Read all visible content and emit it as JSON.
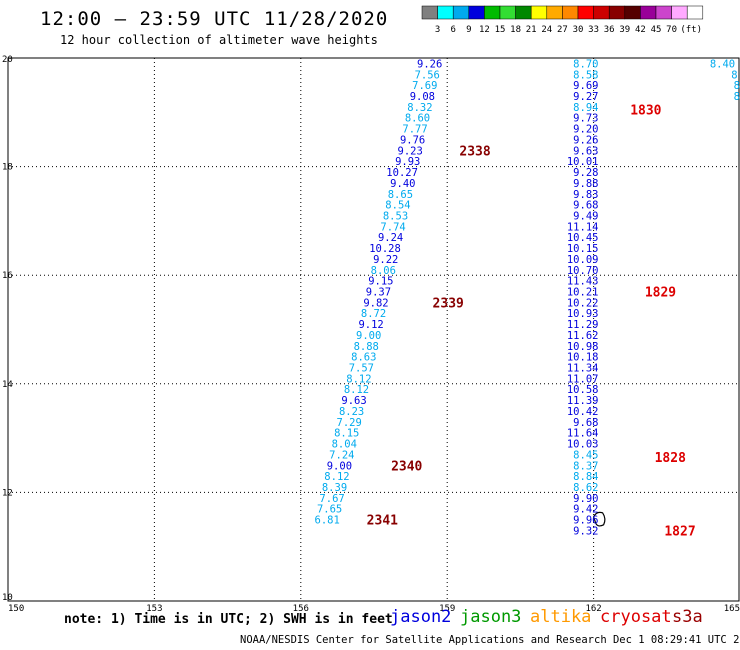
{
  "header": {
    "title": "12:00 – 23:59 UTC 11/28/2020",
    "subtitle": "12 hour collection of altimeter wave heights"
  },
  "colorbar": {
    "colors": [
      "#808080",
      "#00ffff",
      "#00aaee",
      "#0000dd",
      "#00bb00",
      "#33dd33",
      "#008800",
      "#ffff00",
      "#ffaa00",
      "#ff8800",
      "#ff0000",
      "#cc0000",
      "#880000",
      "#550000",
      "#990099",
      "#cc44cc",
      "#ffaaff",
      "#ffffff"
    ],
    "labels": [
      "3",
      "6",
      "9",
      "12",
      "15",
      "18",
      "21",
      "24",
      "27",
      "30",
      "33",
      "36",
      "39",
      "42",
      "45",
      "70",
      "(ft)"
    ]
  },
  "footer": {
    "note": "note: 1) Time is in UTC; 2) SWH is in feet",
    "satellites": [
      {
        "name": "jason2",
        "color": "#0000dd"
      },
      {
        "name": "jason3",
        "color": "#009900"
      },
      {
        "name": "altika",
        "color": "#ff9900"
      },
      {
        "name": "cryosat",
        "color": "#dd0000"
      },
      {
        "name": "s3a",
        "color": "#990000"
      }
    ],
    "credit": "NOAA/NESDIS Center for Satellite Applications and Research    Dec  1 08:29:41 UTC 2020"
  },
  "chart_data": {
    "type": "scatter",
    "title": "12:00 – 23:59 UTC 11/28/2020",
    "xlim": [
      150,
      165
    ],
    "ylim": [
      10,
      20
    ],
    "xticks": [
      "150",
      "153",
      "156",
      "159",
      "162",
      "165"
    ],
    "yticks": [
      "10",
      "12",
      "14",
      "16",
      "18",
      "20"
    ],
    "grid": true,
    "series": [
      {
        "name": "track-west",
        "points": [
          {
            "lon": 158.9,
            "lat": 19.9,
            "swh": "9.26",
            "color": "#0000dd"
          },
          {
            "lon": 158.85,
            "lat": 19.7,
            "swh": "7.56",
            "color": "#00aaee"
          },
          {
            "lon": 158.8,
            "lat": 19.5,
            "swh": "7.69",
            "color": "#00aaee"
          },
          {
            "lon": 158.75,
            "lat": 19.3,
            "swh": "9.08",
            "color": "#0000dd"
          },
          {
            "lon": 158.7,
            "lat": 19.1,
            "swh": "8.32",
            "color": "#00aaee"
          },
          {
            "lon": 158.65,
            "lat": 18.9,
            "swh": "8.60",
            "color": "#00aaee"
          },
          {
            "lon": 158.6,
            "lat": 18.7,
            "swh": "7.77",
            "color": "#00aaee"
          },
          {
            "lon": 158.55,
            "lat": 18.5,
            "swh": "9.76",
            "color": "#0000dd"
          },
          {
            "lon": 158.5,
            "lat": 18.3,
            "swh": "9.23",
            "color": "#0000dd"
          },
          {
            "lon": 158.45,
            "lat": 18.1,
            "swh": "9.93",
            "color": "#0000dd"
          },
          {
            "lon": 158.4,
            "lat": 17.9,
            "swh": "10.27",
            "color": "#0000dd"
          },
          {
            "lon": 158.35,
            "lat": 17.7,
            "swh": "9.40",
            "color": "#0000dd"
          },
          {
            "lon": 158.3,
            "lat": 17.5,
            "swh": "8.65",
            "color": "#00aaee"
          },
          {
            "lon": 158.25,
            "lat": 17.3,
            "swh": "8.54",
            "color": "#00aaee"
          },
          {
            "lon": 158.2,
            "lat": 17.1,
            "swh": "8.53",
            "color": "#00aaee"
          },
          {
            "lon": 158.15,
            "lat": 16.9,
            "swh": "7.74",
            "color": "#00aaee"
          },
          {
            "lon": 158.1,
            "lat": 16.7,
            "swh": "9.24",
            "color": "#0000dd"
          },
          {
            "lon": 158.05,
            "lat": 16.5,
            "swh": "10.28",
            "color": "#0000dd"
          },
          {
            "lon": 158.0,
            "lat": 16.3,
            "swh": "9.22",
            "color": "#0000dd"
          },
          {
            "lon": 157.95,
            "lat": 16.1,
            "swh": "8.06",
            "color": "#00aaee"
          },
          {
            "lon": 157.9,
            "lat": 15.9,
            "swh": "9.15",
            "color": "#0000dd"
          },
          {
            "lon": 157.85,
            "lat": 15.7,
            "swh": "9.37",
            "color": "#0000dd"
          },
          {
            "lon": 157.8,
            "lat": 15.5,
            "swh": "9.82",
            "color": "#0000dd"
          },
          {
            "lon": 157.75,
            "lat": 15.3,
            "swh": "8.72",
            "color": "#00aaee"
          },
          {
            "lon": 157.7,
            "lat": 15.1,
            "swh": "9.12",
            "color": "#0000dd"
          },
          {
            "lon": 157.65,
            "lat": 14.9,
            "swh": "9.00",
            "color": "#00aaee"
          },
          {
            "lon": 157.6,
            "lat": 14.7,
            "swh": "8.88",
            "color": "#00aaee"
          },
          {
            "lon": 157.55,
            "lat": 14.5,
            "swh": "8.63",
            "color": "#00aaee"
          },
          {
            "lon": 157.5,
            "lat": 14.3,
            "swh": "7.57",
            "color": "#00aaee"
          },
          {
            "lon": 157.45,
            "lat": 14.1,
            "swh": "8.12",
            "color": "#00aaee"
          },
          {
            "lon": 157.4,
            "lat": 13.9,
            "swh": "8.12",
            "color": "#00aaee"
          },
          {
            "lon": 157.35,
            "lat": 13.7,
            "swh": "9.63",
            "color": "#0000dd"
          },
          {
            "lon": 157.3,
            "lat": 13.5,
            "swh": "8.23",
            "color": "#00aaee"
          },
          {
            "lon": 157.25,
            "lat": 13.3,
            "swh": "7.29",
            "color": "#00aaee"
          },
          {
            "lon": 157.2,
            "lat": 13.1,
            "swh": "8.15",
            "color": "#00aaee"
          },
          {
            "lon": 157.15,
            "lat": 12.9,
            "swh": "8.04",
            "color": "#00aaee"
          },
          {
            "lon": 157.1,
            "lat": 12.7,
            "swh": "7.24",
            "color": "#00aaee"
          },
          {
            "lon": 157.05,
            "lat": 12.5,
            "swh": "9.00",
            "color": "#0000dd"
          },
          {
            "lon": 157.0,
            "lat": 12.3,
            "swh": "8.12",
            "color": "#00aaee"
          },
          {
            "lon": 156.95,
            "lat": 12.1,
            "swh": "8.39",
            "color": "#00aaee"
          },
          {
            "lon": 156.9,
            "lat": 11.9,
            "swh": "7.67",
            "color": "#00aaee"
          },
          {
            "lon": 156.85,
            "lat": 11.7,
            "swh": "7.65",
            "color": "#00aaee"
          },
          {
            "lon": 156.8,
            "lat": 11.5,
            "swh": "6.81",
            "color": "#00aaee"
          }
        ]
      },
      {
        "name": "track-east",
        "points": [
          {
            "lon": 162.1,
            "lat": 19.9,
            "swh": "8.70",
            "color": "#00aaee"
          },
          {
            "lon": 162.1,
            "lat": 19.7,
            "swh": "8.58",
            "color": "#00aaee"
          },
          {
            "lon": 162.1,
            "lat": 19.5,
            "swh": "9.69",
            "color": "#0000dd"
          },
          {
            "lon": 162.1,
            "lat": 19.3,
            "swh": "9.27",
            "color": "#0000dd"
          },
          {
            "lon": 162.1,
            "lat": 19.1,
            "swh": "8.94",
            "color": "#00aaee"
          },
          {
            "lon": 162.1,
            "lat": 18.9,
            "swh": "9.73",
            "color": "#0000dd"
          },
          {
            "lon": 162.1,
            "lat": 18.7,
            "swh": "9.20",
            "color": "#0000dd"
          },
          {
            "lon": 162.1,
            "lat": 18.5,
            "swh": "9.26",
            "color": "#0000dd"
          },
          {
            "lon": 162.1,
            "lat": 18.3,
            "swh": "9.63",
            "color": "#0000dd"
          },
          {
            "lon": 162.1,
            "lat": 18.1,
            "swh": "10.01",
            "color": "#0000dd"
          },
          {
            "lon": 162.1,
            "lat": 17.9,
            "swh": "9.28",
            "color": "#0000dd"
          },
          {
            "lon": 162.1,
            "lat": 17.7,
            "swh": "9.88",
            "color": "#0000dd"
          },
          {
            "lon": 162.1,
            "lat": 17.5,
            "swh": "9.83",
            "color": "#0000dd"
          },
          {
            "lon": 162.1,
            "lat": 17.3,
            "swh": "9.68",
            "color": "#0000dd"
          },
          {
            "lon": 162.1,
            "lat": 17.1,
            "swh": "9.49",
            "color": "#0000dd"
          },
          {
            "lon": 162.1,
            "lat": 16.9,
            "swh": "11.14",
            "color": "#0000dd"
          },
          {
            "lon": 162.1,
            "lat": 16.7,
            "swh": "10.45",
            "color": "#0000dd"
          },
          {
            "lon": 162.1,
            "lat": 16.5,
            "swh": "10.15",
            "color": "#0000dd"
          },
          {
            "lon": 162.1,
            "lat": 16.3,
            "swh": "10.09",
            "color": "#0000dd"
          },
          {
            "lon": 162.1,
            "lat": 16.1,
            "swh": "10.70",
            "color": "#0000dd"
          },
          {
            "lon": 162.1,
            "lat": 15.9,
            "swh": "11.43",
            "color": "#0000dd"
          },
          {
            "lon": 162.1,
            "lat": 15.7,
            "swh": "10.21",
            "color": "#0000dd"
          },
          {
            "lon": 162.1,
            "lat": 15.5,
            "swh": "10.22",
            "color": "#0000dd"
          },
          {
            "lon": 162.1,
            "lat": 15.3,
            "swh": "10.93",
            "color": "#0000dd"
          },
          {
            "lon": 162.1,
            "lat": 15.1,
            "swh": "11.29",
            "color": "#0000dd"
          },
          {
            "lon": 162.1,
            "lat": 14.9,
            "swh": "11.62",
            "color": "#0000dd"
          },
          {
            "lon": 162.1,
            "lat": 14.7,
            "swh": "10.98",
            "color": "#0000dd"
          },
          {
            "lon": 162.1,
            "lat": 14.5,
            "swh": "10.18",
            "color": "#0000dd"
          },
          {
            "lon": 162.1,
            "lat": 14.3,
            "swh": "11.34",
            "color": "#0000dd"
          },
          {
            "lon": 162.1,
            "lat": 14.1,
            "swh": "11.07",
            "color": "#0000dd"
          },
          {
            "lon": 162.1,
            "lat": 13.9,
            "swh": "10.58",
            "color": "#0000dd"
          },
          {
            "lon": 162.1,
            "lat": 13.7,
            "swh": "11.39",
            "color": "#0000dd"
          },
          {
            "lon": 162.1,
            "lat": 13.5,
            "swh": "10.42",
            "color": "#0000dd"
          },
          {
            "lon": 162.1,
            "lat": 13.3,
            "swh": "9.68",
            "color": "#0000dd"
          },
          {
            "lon": 162.1,
            "lat": 13.1,
            "swh": "11.64",
            "color": "#0000dd"
          },
          {
            "lon": 162.1,
            "lat": 12.9,
            "swh": "10.03",
            "color": "#0000dd"
          },
          {
            "lon": 162.1,
            "lat": 12.7,
            "swh": "8.45",
            "color": "#00aaee"
          },
          {
            "lon": 162.1,
            "lat": 12.5,
            "swh": "8.37",
            "color": "#00aaee"
          },
          {
            "lon": 162.1,
            "lat": 12.3,
            "swh": "8.84",
            "color": "#00aaee"
          },
          {
            "lon": 162.1,
            "lat": 12.1,
            "swh": "8.62",
            "color": "#00aaee"
          },
          {
            "lon": 162.1,
            "lat": 11.9,
            "swh": "9.90",
            "color": "#0000dd"
          },
          {
            "lon": 162.1,
            "lat": 11.7,
            "swh": "9.42",
            "color": "#0000dd"
          },
          {
            "lon": 162.1,
            "lat": 11.5,
            "swh": "9.96",
            "color": "#0000dd"
          },
          {
            "lon": 162.1,
            "lat": 11.3,
            "swh": "9.32",
            "color": "#0000dd"
          }
        ]
      },
      {
        "name": "track-edge",
        "points": [
          {
            "lon": 164.9,
            "lat": 19.9,
            "swh": "8.40",
            "color": "#00aaee"
          },
          {
            "lon": 164.95,
            "lat": 19.7,
            "swh": "8",
            "color": "#00aaee"
          },
          {
            "lon": 165.0,
            "lat": 19.5,
            "swh": "8",
            "color": "#00aaee"
          },
          {
            "lon": 165.0,
            "lat": 19.3,
            "swh": "8",
            "color": "#00aaee"
          }
        ]
      }
    ],
    "time_labels": [
      {
        "text": "2338",
        "lon": 159.25,
        "lat": 18.3,
        "color": "#880000"
      },
      {
        "text": "2339",
        "lon": 158.7,
        "lat": 15.5,
        "color": "#880000"
      },
      {
        "text": "2340",
        "lon": 157.85,
        "lat": 12.5,
        "color": "#880000"
      },
      {
        "text": "2341",
        "lon": 157.35,
        "lat": 11.5,
        "color": "#880000"
      },
      {
        "text": "1830",
        "lon": 162.75,
        "lat": 19.05,
        "color": "#dd0000"
      },
      {
        "text": "1829",
        "lon": 163.05,
        "lat": 15.7,
        "color": "#dd0000"
      },
      {
        "text": "1828",
        "lon": 163.25,
        "lat": 12.65,
        "color": "#dd0000"
      },
      {
        "text": "1827",
        "lon": 163.45,
        "lat": 11.3,
        "color": "#dd0000"
      }
    ]
  }
}
